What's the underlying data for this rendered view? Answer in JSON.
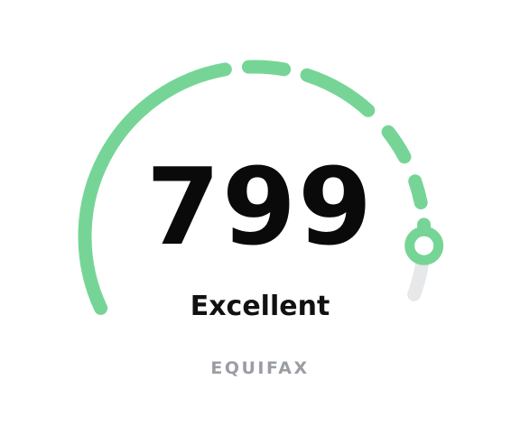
{
  "score_card": {
    "score": "799",
    "rating": "Excellent",
    "bureau": "EQUIFAX",
    "score_fraction": 0.925,
    "colors": {
      "filled": "#76d596",
      "track": "#e6e8ea",
      "text": "#0a0a0a",
      "bureau": "#9a9ea3"
    }
  }
}
